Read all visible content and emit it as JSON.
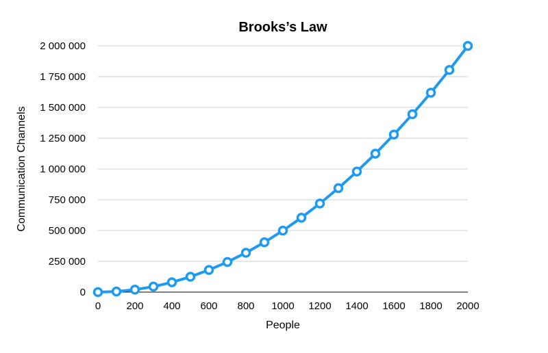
{
  "chart_data": {
    "type": "line",
    "title": "Brooks’s Law",
    "xlabel": "People",
    "ylabel": "Communication Channels",
    "xlim": [
      0,
      2000
    ],
    "ylim": [
      0,
      2000000
    ],
    "x_ticks": [
      0,
      200,
      400,
      600,
      800,
      1000,
      1200,
      1400,
      1600,
      1800,
      2000
    ],
    "x_tick_labels": [
      "0",
      "200",
      "400",
      "600",
      "800",
      "1000",
      "1200",
      "1400",
      "1600",
      "1800",
      "2000"
    ],
    "y_ticks": [
      0,
      250000,
      500000,
      750000,
      1000000,
      1250000,
      1500000,
      1750000,
      2000000
    ],
    "y_tick_labels": [
      "0",
      "250 000",
      "500 000",
      "750 000",
      "1 000 000",
      "1 250 000",
      "1 500 000",
      "1 750 000",
      "2 000 000"
    ],
    "grid": "horizontal",
    "legend": "none",
    "series": [
      {
        "color": "#1e9bf0",
        "x": [
          0,
          100,
          200,
          300,
          400,
          500,
          600,
          700,
          800,
          900,
          1000,
          1100,
          1200,
          1300,
          1400,
          1500,
          1600,
          1700,
          1800,
          1900,
          2000
        ],
        "values": [
          0,
          4950,
          19900,
          44850,
          79800,
          124750,
          179700,
          244650,
          319600,
          404550,
          499500,
          604450,
          719400,
          844350,
          979300,
          1124250,
          1279200,
          1444150,
          1619100,
          1804050,
          1999000
        ]
      }
    ]
  }
}
